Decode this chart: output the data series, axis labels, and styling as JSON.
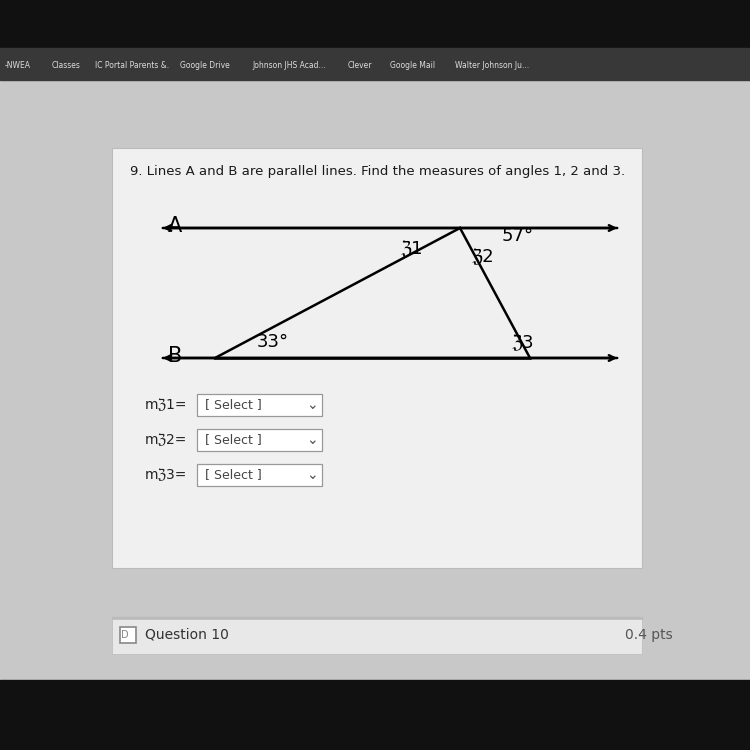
{
  "title": "9. Lines A and B are parallel lines. Find the measures of angles 1, 2 and 3.",
  "bg_color": "#c8c8c8",
  "white_box_color": "#ffffff",
  "lc": "#000000",
  "line_A_label": "A",
  "line_B_label": "B",
  "angle_57_label": "57°",
  "angle_33_label": "33°",
  "angle_1_label": "ℨ1",
  "angle_2_label": "ℨ2",
  "angle_3_label": "ℨ3",
  "select_label": "[ Select ]",
  "m_angle1_label": "mℨ1=",
  "m_angle2_label": "mℨ2=",
  "m_angle3_label": "mℨ3=",
  "question10_label": "Question 10",
  "pts_label": "0.4 pts",
  "tab_texts": [
    "-NWEA",
    "Classes",
    "IC Portal Parents &.",
    "Google Drive",
    "Johnson JHS Acad...",
    "Clever",
    "Google Mail",
    "Walter Johnson Ju..."
  ],
  "tab_x": [
    5,
    52,
    95,
    180,
    252,
    348,
    390,
    455
  ]
}
